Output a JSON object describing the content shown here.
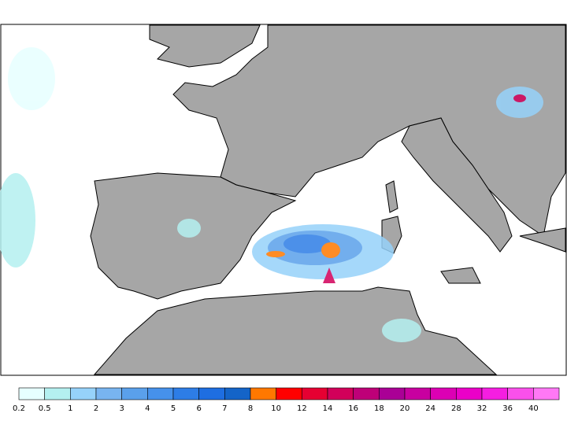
{
  "legend": {
    "levels": [
      0.2,
      0.5,
      1,
      2,
      3,
      4,
      5,
      6,
      7,
      8,
      10,
      12,
      14,
      16,
      18,
      20,
      24,
      28,
      32,
      36,
      40
    ],
    "colors": [
      "#e6ffff",
      "#b4f0f0",
      "#96d2fa",
      "#78b4f0",
      "#5aa0eb",
      "#4691eb",
      "#2d7de6",
      "#1e6ee1",
      "#1464c8",
      "#ff7800",
      "#ff0000",
      "#e60032",
      "#d2005a",
      "#be0078",
      "#aa0096",
      "#c800a0",
      "#dc00b4",
      "#eb00c8",
      "#f51ee1",
      "#fa50eb",
      "#ff78f5"
    ]
  }
}
